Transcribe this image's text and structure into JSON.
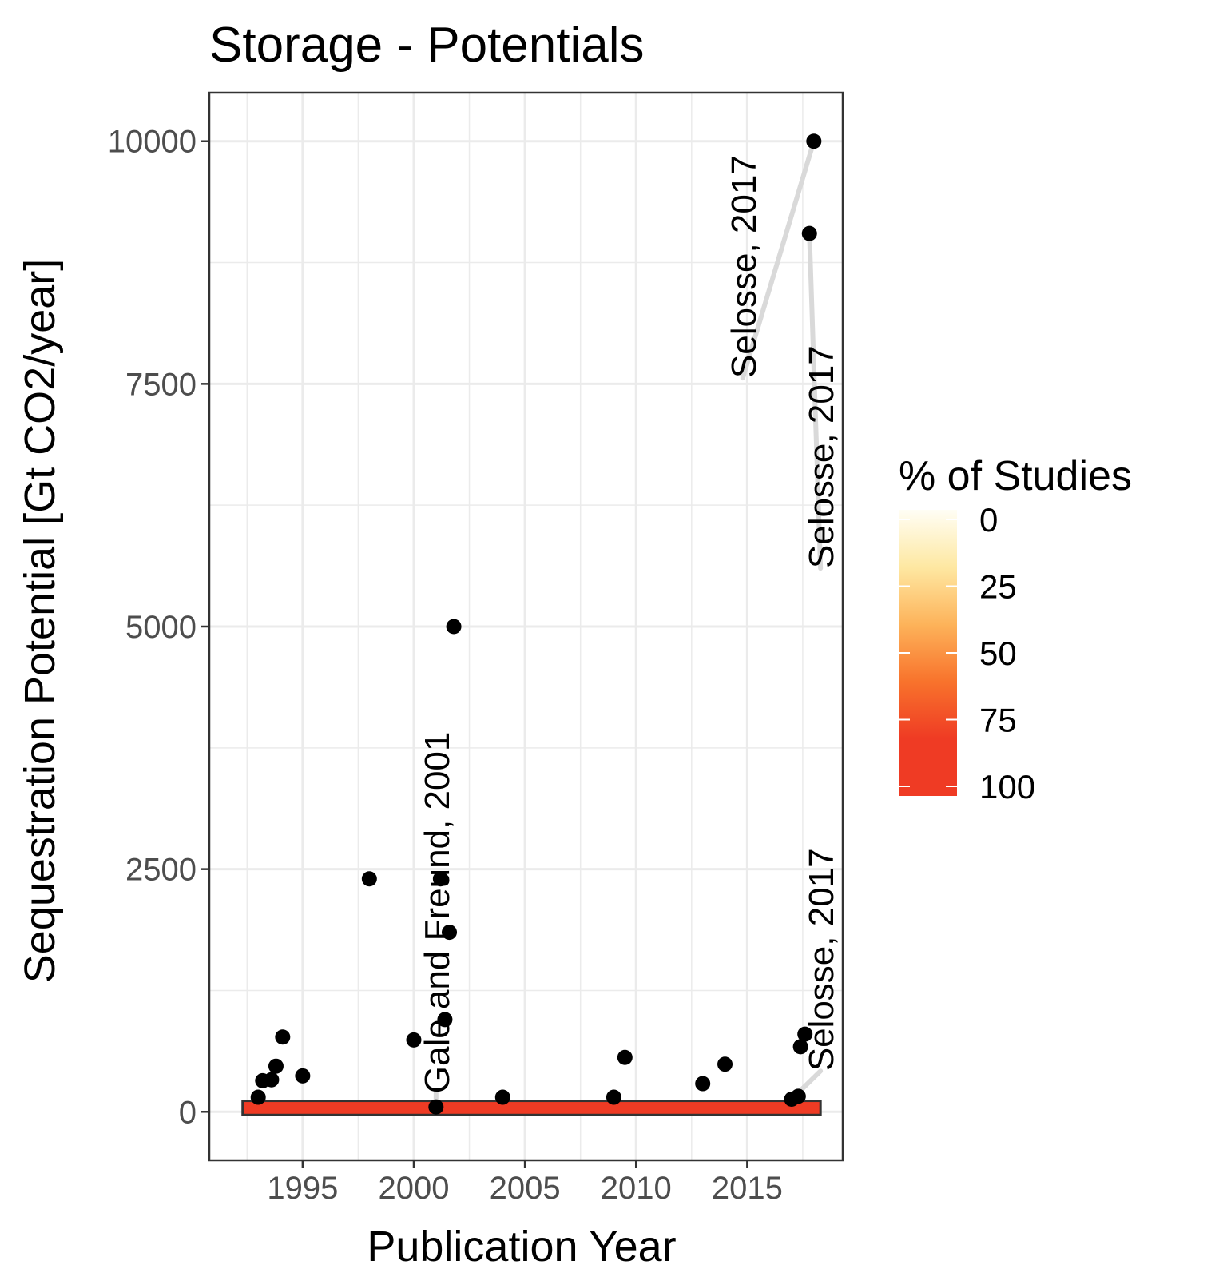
{
  "chart_data": {
    "type": "scatter",
    "title": "Storage - Potentials",
    "xlabel": "Publication Year",
    "ylabel": "Sequestration Potential [Gt CO2/year]",
    "xlim": [
      1990.8,
      2019.3
    ],
    "ylim": [
      -500,
      10500
    ],
    "x_ticks": [
      1995,
      2000,
      2005,
      2010,
      2015
    ],
    "y_ticks": [
      0,
      2500,
      5000,
      7500,
      10000
    ],
    "grid": true,
    "points": [
      {
        "x": 1993.0,
        "y": 150
      },
      {
        "x": 1993.2,
        "y": 320
      },
      {
        "x": 1993.6,
        "y": 330
      },
      {
        "x": 1993.8,
        "y": 470
      },
      {
        "x": 1994.1,
        "y": 770
      },
      {
        "x": 1995.0,
        "y": 370
      },
      {
        "x": 1998.0,
        "y": 2400
      },
      {
        "x": 2000.0,
        "y": 740
      },
      {
        "x": 2001.0,
        "y": 50
      },
      {
        "x": 2001.2,
        "y": 2400
      },
      {
        "x": 2001.4,
        "y": 950
      },
      {
        "x": 2001.6,
        "y": 1850
      },
      {
        "x": 2001.8,
        "y": 5000
      },
      {
        "x": 2004.0,
        "y": 150
      },
      {
        "x": 2009.0,
        "y": 150
      },
      {
        "x": 2009.5,
        "y": 560
      },
      {
        "x": 2013.0,
        "y": 290
      },
      {
        "x": 2014.0,
        "y": 490
      },
      {
        "x": 2017.0,
        "y": 130
      },
      {
        "x": 2017.3,
        "y": 160
      },
      {
        "x": 2017.4,
        "y": 670
      },
      {
        "x": 2017.6,
        "y": 800
      },
      {
        "x": 2017.8,
        "y": 9050
      },
      {
        "x": 2018.0,
        "y": 10000
      }
    ],
    "band": {
      "x": [
        1992.3,
        2018.3
      ],
      "y": [
        0,
        80
      ],
      "value": 100
    },
    "labels": [
      {
        "text": "Gale and Freund, 2001",
        "x": 2001.0,
        "y": 50,
        "lx": 2001.0,
        "ly": 190,
        "angle": -90
      },
      {
        "text": "Selosse, 2017",
        "x": 2018.0,
        "y": 10000,
        "lx": 2014.8,
        "ly": 7560,
        "angle": -90
      },
      {
        "text": "Selosse, 2017",
        "x": 2017.8,
        "y": 9050,
        "lx": 2018.3,
        "ly": 5600,
        "angle": -90
      },
      {
        "text": "Selosse, 2017",
        "x": 2017.0,
        "y": 130,
        "lx": 2018.3,
        "ly": 420,
        "angle": -90
      }
    ],
    "legend": {
      "title": "% of Studies",
      "position": "right",
      "ticks": [
        0,
        25,
        50,
        75,
        100
      ],
      "colors": [
        "#fffef5",
        "#fee8a2",
        "#fdb35a",
        "#f8732c",
        "#ef3b24",
        "#ef3b24"
      ]
    },
    "colors": {
      "point": "#000000",
      "band_fill": "#ef3b24",
      "band_border": "#333333",
      "label_line": "#d9d9d9",
      "grid": "#ebebeb",
      "panel_border": "#333333",
      "tick_text": "#4d4d4d",
      "text": "#000000"
    }
  }
}
